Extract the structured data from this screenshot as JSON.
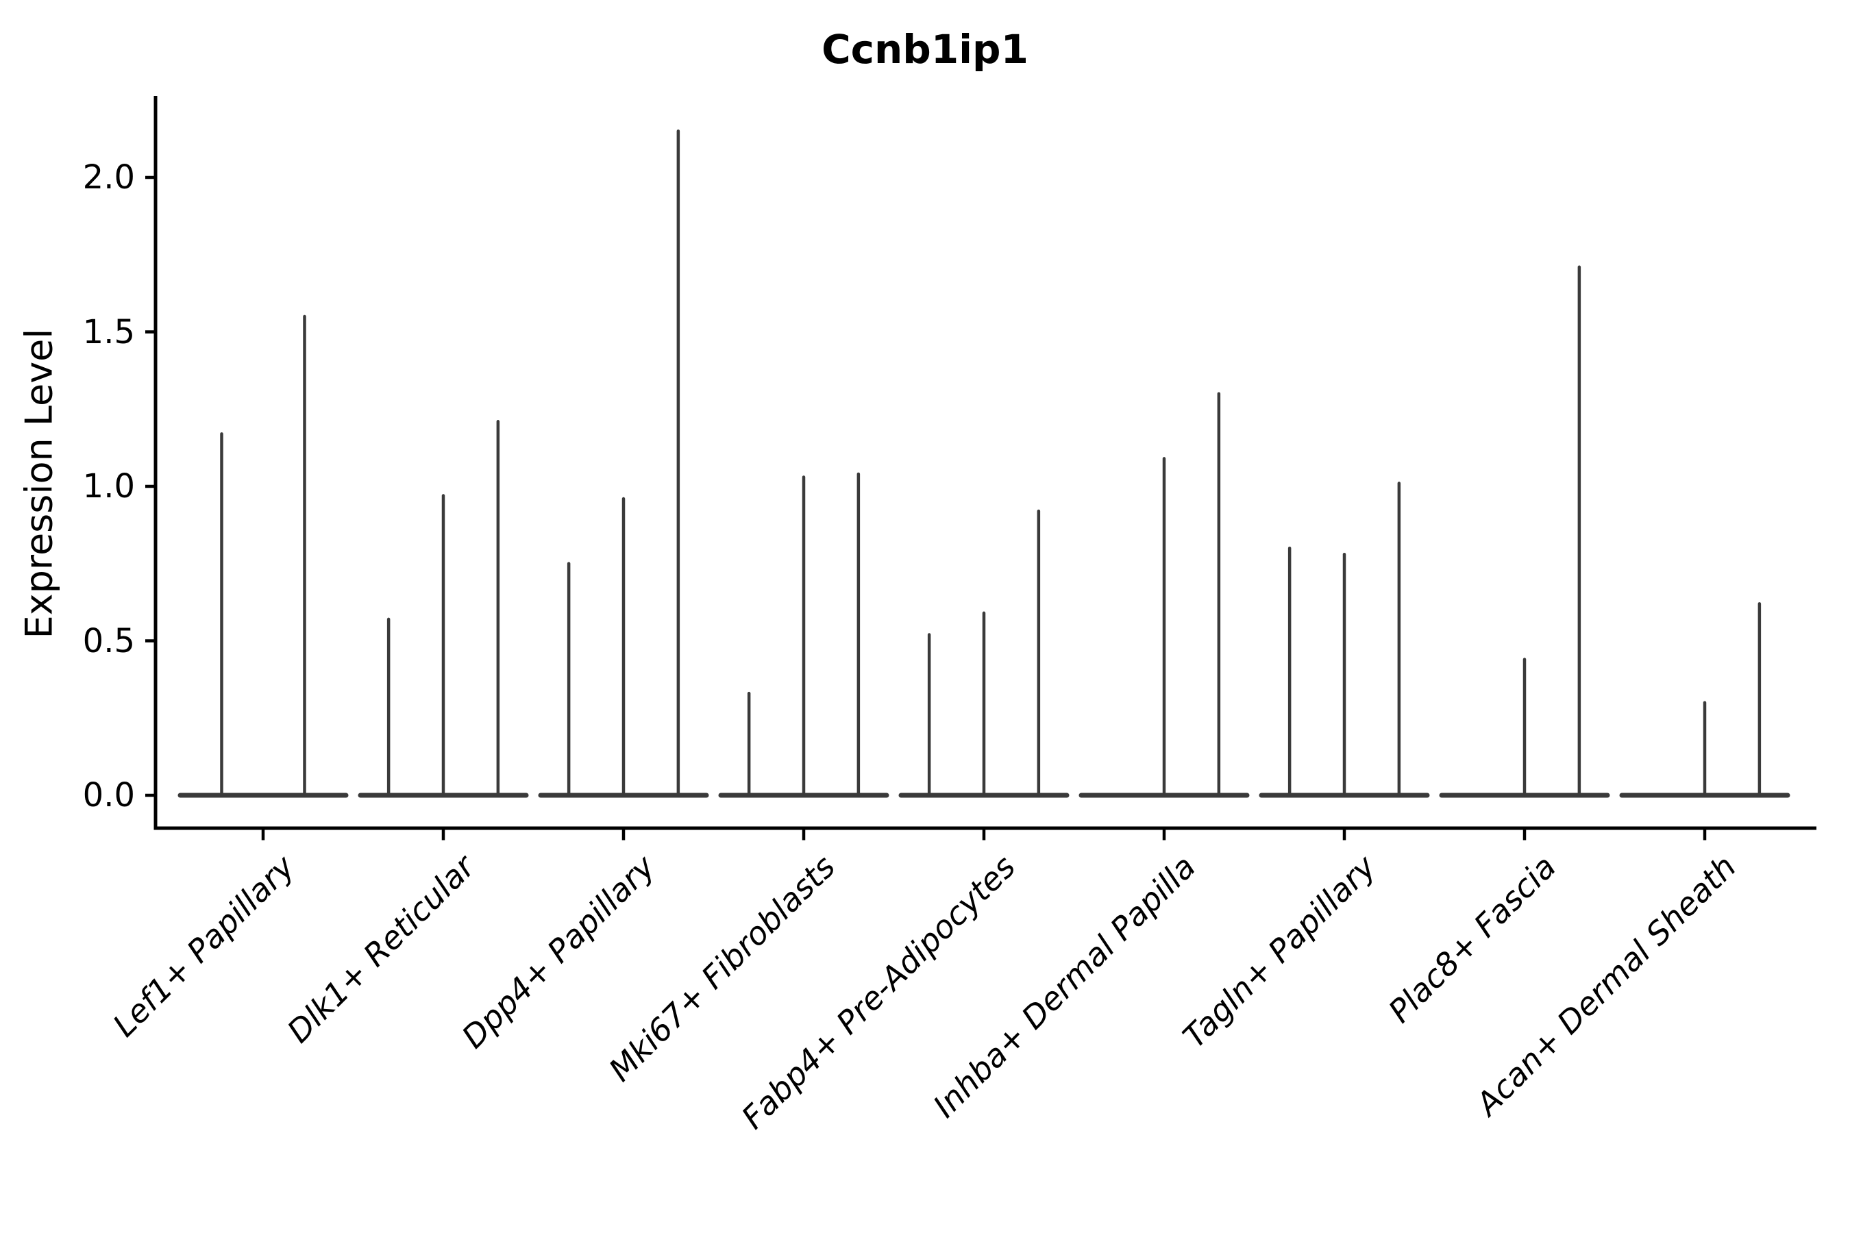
{
  "title": "Ccnb1ip1",
  "ylabel": "Expression Level",
  "chart_data": {
    "type": "violin",
    "title": "Ccnb1ip1",
    "subtitle": "",
    "xlabel": "",
    "ylabel": "Expression Level",
    "ylim": [
      0,
      2.26
    ],
    "yticks": [
      {
        "value": 0.0,
        "label": "0.0"
      },
      {
        "value": 0.5,
        "label": "0.5"
      },
      {
        "value": 1.0,
        "label": "1.0"
      },
      {
        "value": 1.5,
        "label": "1.5"
      },
      {
        "value": 2.0,
        "label": "2.0"
      }
    ],
    "grid": false,
    "legend_position": "none",
    "description": "Collapsed violin plot: each category shows a flat density baseline at expression 0 with thin vertical spikes at the expression values of the few expressing cells. Spike pos is the fractional x-position within the category slot.",
    "categories": [
      {
        "label": "Lef1+ Papillary",
        "spikes": [
          {
            "pos": 0.25,
            "value": 1.17
          },
          {
            "pos": 0.75,
            "value": 1.55
          }
        ]
      },
      {
        "label": "Dlk1+ Reticular",
        "spikes": [
          {
            "pos": 0.17,
            "value": 0.57
          },
          {
            "pos": 0.5,
            "value": 0.97
          },
          {
            "pos": 0.83,
            "value": 1.21
          }
        ]
      },
      {
        "label": "Dpp4+ Papillary",
        "spikes": [
          {
            "pos": 0.17,
            "value": 0.75
          },
          {
            "pos": 0.5,
            "value": 0.96
          },
          {
            "pos": 0.83,
            "value": 2.15
          }
        ]
      },
      {
        "label": "Mki67+ Fibroblasts",
        "spikes": [
          {
            "pos": 0.17,
            "value": 0.33
          },
          {
            "pos": 0.5,
            "value": 1.03
          },
          {
            "pos": 0.83,
            "value": 1.04
          }
        ]
      },
      {
        "label": "Fabp4+ Pre-Adipocytes",
        "spikes": [
          {
            "pos": 0.17,
            "value": 0.52
          },
          {
            "pos": 0.5,
            "value": 0.59
          },
          {
            "pos": 0.83,
            "value": 0.92
          }
        ]
      },
      {
        "label": "Inhba+ Dermal Papilla",
        "spikes": [
          {
            "pos": 0.5,
            "value": 1.09
          },
          {
            "pos": 0.83,
            "value": 1.3
          }
        ]
      },
      {
        "label": "Tagln+ Papillary",
        "spikes": [
          {
            "pos": 0.17,
            "value": 0.8
          },
          {
            "pos": 0.5,
            "value": 0.78
          },
          {
            "pos": 0.83,
            "value": 1.01
          }
        ]
      },
      {
        "label": "Plac8+ Fascia",
        "spikes": [
          {
            "pos": 0.5,
            "value": 0.44
          },
          {
            "pos": 0.83,
            "value": 1.71
          }
        ]
      },
      {
        "label": "Acan+ Dermal Sheath",
        "spikes": [
          {
            "pos": 0.5,
            "value": 0.3
          },
          {
            "pos": 0.83,
            "value": 0.62
          }
        ]
      }
    ],
    "colors": {
      "spike": "#3a3a3a",
      "baseline": "#3a3a3a",
      "axis": "#000000",
      "text": "#000000",
      "background": "#ffffff"
    }
  }
}
